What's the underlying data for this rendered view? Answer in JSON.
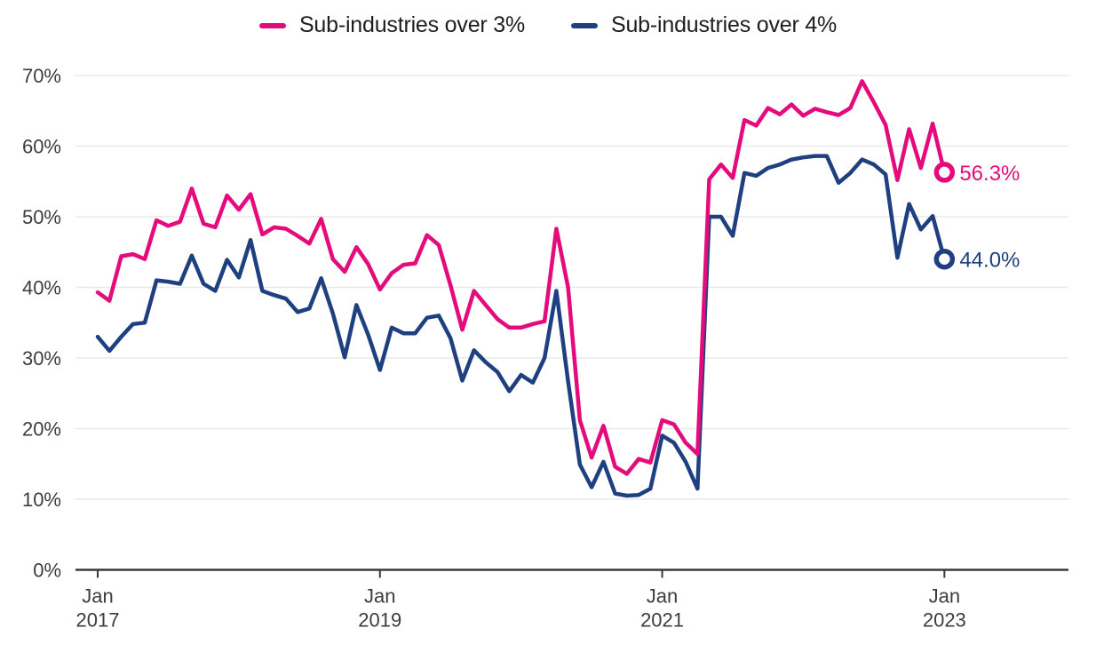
{
  "chart_data": {
    "type": "line",
    "title": "",
    "unit": "%",
    "x_interval": "monthly",
    "x_start": "Jan 2017",
    "x_end": "Jan 2023",
    "n_points": 73,
    "grid": "horizontal",
    "legend_position": "top-center",
    "y_axis": {
      "min": 0,
      "max": 70,
      "tick_step": 10
    },
    "y_ticks": [
      {
        "label": "0%",
        "value": 0
      },
      {
        "label": "10%",
        "value": 10
      },
      {
        "label": "20%",
        "value": 20
      },
      {
        "label": "30%",
        "value": 30
      },
      {
        "label": "40%",
        "value": 40
      },
      {
        "label": "50%",
        "value": 50
      },
      {
        "label": "60%",
        "value": 60
      },
      {
        "label": "70%",
        "value": 70
      }
    ],
    "x_ticks": [
      {
        "line1": "Jan",
        "line2": "2017",
        "index": 0
      },
      {
        "line1": "Jan",
        "line2": "2019",
        "index": 24
      },
      {
        "line1": "Jan",
        "line2": "2021",
        "index": 48
      },
      {
        "line1": "Jan",
        "line2": "2023",
        "index": 72
      }
    ],
    "series": [
      {
        "name": "Sub-industries over 3%",
        "color": "#e40b7c",
        "end_label": "56.3%",
        "values": [
          39.3,
          38.1,
          44.4,
          44.7,
          44.0,
          49.5,
          48.7,
          49.3,
          54.0,
          49.0,
          48.5,
          53.0,
          51.0,
          53.2,
          47.5,
          48.5,
          48.3,
          47.3,
          46.2,
          49.7,
          44.0,
          42.2,
          45.7,
          43.3,
          39.7,
          42.0,
          43.2,
          43.4,
          47.4,
          46.0,
          40.3,
          34.0,
          39.5,
          37.5,
          35.5,
          34.3,
          34.3,
          34.8,
          35.2,
          48.3,
          40.0,
          21.2,
          15.9,
          20.4,
          14.6,
          13.6,
          15.7,
          15.2,
          21.2,
          20.6,
          18.0,
          16.4,
          55.3,
          57.4,
          55.5,
          63.7,
          62.9,
          65.4,
          64.5,
          65.9,
          64.3,
          65.3,
          64.8,
          64.4,
          65.4,
          69.2,
          66.2,
          63.0,
          55.2,
          62.4,
          56.9,
          63.2,
          56.3
        ]
      },
      {
        "name": "Sub-industries over 4%",
        "color": "#1f4080",
        "end_label": "44.0%",
        "values": [
          33.0,
          31.0,
          33.0,
          34.8,
          35.0,
          41.0,
          40.8,
          40.5,
          44.5,
          40.5,
          39.5,
          43.9,
          41.4,
          46.7,
          39.5,
          38.9,
          38.4,
          36.5,
          37.0,
          41.3,
          36.3,
          30.1,
          37.5,
          33.3,
          28.3,
          34.3,
          33.5,
          33.5,
          35.7,
          36.0,
          32.8,
          26.8,
          31.1,
          29.4,
          28.0,
          25.3,
          27.6,
          26.5,
          30.0,
          39.5,
          26.7,
          14.9,
          11.7,
          15.3,
          10.8,
          10.5,
          10.6,
          11.5,
          19.0,
          18.0,
          15.3,
          11.5,
          50.0,
          50.0,
          47.3,
          56.2,
          55.8,
          56.9,
          57.4,
          58.1,
          58.4,
          58.6,
          58.6,
          54.8,
          56.2,
          58.1,
          57.4,
          56.0,
          44.2,
          51.8,
          48.2,
          50.1,
          44.0
        ]
      }
    ]
  },
  "colors": {
    "background": "#ffffff",
    "gridline": "#e9e9e9",
    "axis": "#3a3a3a",
    "tick_label": "#3d3d3d",
    "legend_text": "#1e1e1e",
    "marker_fill": "#ffffff"
  }
}
